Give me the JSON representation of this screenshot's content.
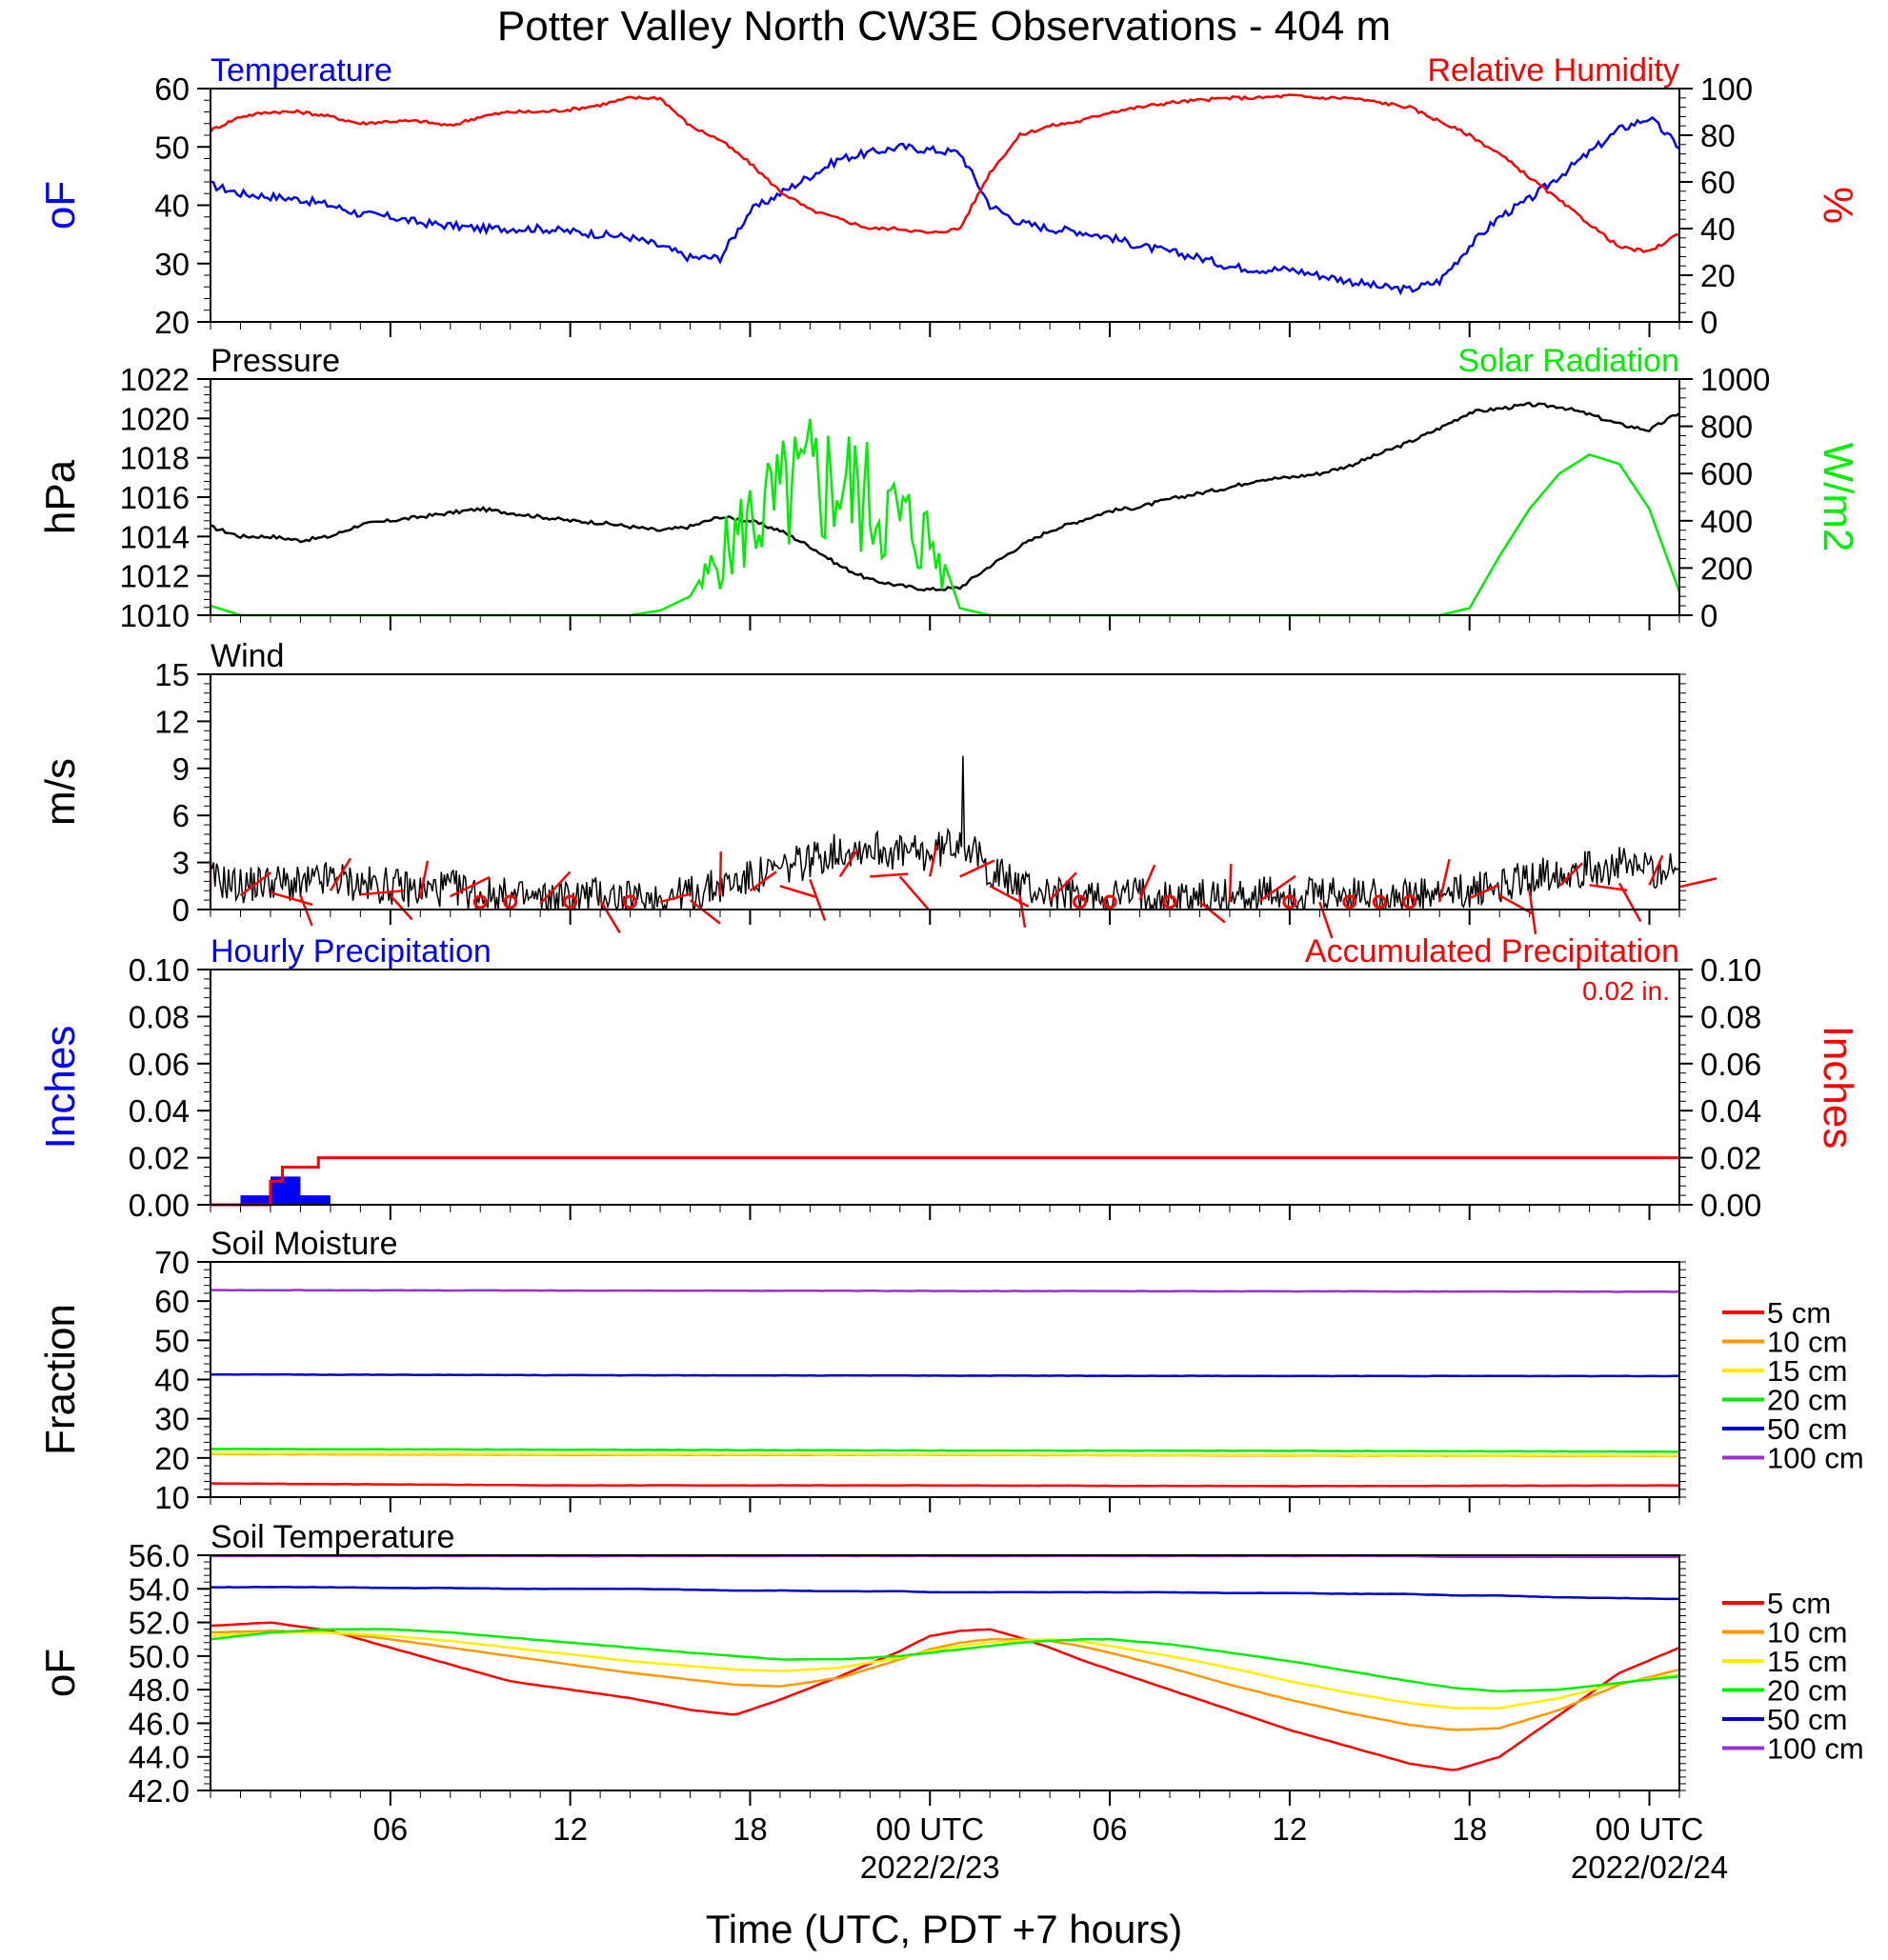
{
  "title": "Potter Valley North CW3E Observations - 404 m",
  "x_axis": {
    "label": "Time (UTC, PDT +7 hours)",
    "ticks": [
      {
        "hour": 6,
        "label": "06"
      },
      {
        "hour": 12,
        "label": "12"
      },
      {
        "hour": 18,
        "label": "18"
      },
      {
        "hour": 24,
        "label": "00 UTC",
        "date": "2022/2/23"
      },
      {
        "hour": 30,
        "label": "06"
      },
      {
        "hour": 36,
        "label": "12"
      },
      {
        "hour": 42,
        "label": "18"
      },
      {
        "hour": 48,
        "label": "00 UTC",
        "date": "2022/02/24"
      }
    ],
    "range_hours": [
      0,
      49
    ]
  },
  "chart_data": [
    {
      "type": "line",
      "id": "temp_rh",
      "left_title": "Temperature",
      "right_title": "Relative Humidity",
      "ylabel": "oF",
      "y2label": "%",
      "ylim": [
        20,
        60
      ],
      "y2lim": [
        0,
        100
      ],
      "yticks": [
        "20",
        "30",
        "40",
        "50",
        "60"
      ],
      "y2ticks": [
        "0",
        "20",
        "40",
        "60",
        "80",
        "100"
      ],
      "x_hours": [
        0,
        1,
        2,
        3,
        4,
        5,
        6,
        7,
        8,
        9,
        10,
        11,
        12,
        13,
        14,
        15,
        16,
        17,
        18,
        19,
        20,
        21,
        22,
        23,
        24,
        25,
        26,
        27,
        28,
        29,
        30,
        31,
        32,
        33,
        34,
        35,
        36,
        37,
        38,
        39,
        40,
        41,
        42,
        43,
        44,
        45,
        46,
        47,
        48,
        49
      ],
      "series": [
        {
          "values": [
            43.5,
            42,
            41.5,
            41,
            40,
            38.5,
            38,
            37,
            36.5,
            36,
            36,
            36,
            35.5,
            35,
            34.5,
            33,
            31,
            31,
            39,
            42,
            45,
            48,
            49,
            50,
            49.5,
            49,
            40,
            37,
            36,
            35.5,
            34.5,
            33,
            32,
            31,
            29.5,
            29,
            29,
            28,
            27,
            26,
            25.5,
            27,
            33,
            38,
            41,
            45,
            49,
            53,
            55,
            50
          ],
          "color": "#0000ff",
          "axis": "left"
        },
        {
          "values": [
            82,
            88,
            90,
            90,
            88,
            85,
            86,
            86,
            84,
            88,
            90,
            90,
            91,
            93,
            96,
            96,
            84,
            78,
            68,
            56,
            48,
            44,
            40,
            40,
            38,
            40,
            64,
            80,
            84,
            86,
            90,
            92,
            94,
            95,
            96,
            96,
            97,
            96,
            96,
            94,
            92,
            86,
            80,
            72,
            62,
            52,
            42,
            32,
            30,
            38
          ],
          "color": "#ff0000",
          "axis": "right"
        }
      ]
    },
    {
      "type": "line",
      "id": "pressure_solar",
      "left_title": "Pressure",
      "right_title": "Solar Radiation",
      "ylabel": "hPa",
      "y2label": "W/m2",
      "ylim": [
        1010,
        1022
      ],
      "y2lim": [
        0,
        1000
      ],
      "yticks": [
        "1010",
        "1012",
        "1014",
        "1016",
        "1018",
        "1020",
        "1022"
      ],
      "y2ticks": [
        "0",
        "200",
        "400",
        "600",
        "800",
        "1000"
      ],
      "x_hours": [
        0,
        1,
        2,
        3,
        4,
        5,
        6,
        7,
        8,
        9,
        10,
        11,
        12,
        13,
        14,
        15,
        16,
        17,
        18,
        19,
        20,
        21,
        22,
        23,
        24,
        25,
        26,
        27,
        28,
        29,
        30,
        31,
        32,
        33,
        34,
        35,
        36,
        37,
        38,
        39,
        40,
        41,
        42,
        43,
        44,
        45,
        46,
        47,
        48,
        49
      ],
      "series": [
        {
          "values": [
            1014.5,
            1014,
            1014,
            1013.8,
            1014,
            1014.6,
            1014.8,
            1015,
            1015.2,
            1015.4,
            1015.2,
            1015,
            1014.8,
            1014.7,
            1014.5,
            1014.3,
            1014.5,
            1015,
            1014.8,
            1014.3,
            1013.5,
            1012.5,
            1011.8,
            1011.5,
            1011.3,
            1011.4,
            1012.5,
            1013.5,
            1014.3,
            1014.8,
            1015.3,
            1015.5,
            1015.9,
            1016.2,
            1016.5,
            1016.9,
            1017,
            1017.2,
            1017.6,
            1018.2,
            1018.8,
            1019.5,
            1020.3,
            1020.5,
            1020.7,
            1020.6,
            1020.2,
            1019.7,
            1019.4,
            1020.3
          ],
          "color": "#000000",
          "axis": "left"
        },
        {
          "values": [
            40,
            0,
            0,
            0,
            0,
            0,
            0,
            0,
            0,
            0,
            0,
            0,
            0,
            0,
            0,
            20,
            80,
            300,
            500,
            600,
            700,
            700,
            600,
            500,
            400,
            30,
            0,
            0,
            0,
            0,
            0,
            0,
            0,
            0,
            0,
            0,
            0,
            0,
            0,
            0,
            0,
            0,
            30,
            250,
            450,
            600,
            680,
            640,
            450,
            100
          ],
          "color": "#00ee00",
          "axis": "right"
        }
      ]
    },
    {
      "type": "line",
      "id": "wind",
      "left_title": "Wind",
      "ylabel": "m/s",
      "ylim": [
        0,
        15
      ],
      "yticks": [
        "0",
        "3",
        "6",
        "9",
        "12",
        "15"
      ],
      "x_hours": [
        0,
        1,
        2,
        3,
        4,
        5,
        6,
        7,
        8,
        9,
        10,
        11,
        12,
        13,
        14,
        15,
        16,
        17,
        18,
        19,
        20,
        21,
        22,
        23,
        24,
        25,
        26,
        27,
        28,
        29,
        30,
        31,
        32,
        33,
        34,
        35,
        36,
        37,
        38,
        39,
        40,
        41,
        42,
        43,
        44,
        45,
        46,
        47,
        48,
        49
      ],
      "series": [
        {
          "values": [
            2,
            1.5,
            1.8,
            1.5,
            2,
            1.6,
            1.5,
            1.2,
            1.4,
            1,
            0.8,
            0.6,
            0.8,
            1,
            0.6,
            0.8,
            1,
            1.5,
            2,
            2.5,
            3.2,
            3.8,
            4,
            3.6,
            3.5,
            4.5,
            2.5,
            1.5,
            1,
            0.8,
            0.8,
            1,
            0.8,
            0.8,
            0.8,
            0.9,
            1,
            0.8,
            0.9,
            1,
            0.8,
            0.8,
            1.2,
            1.5,
            2,
            2.5,
            2.6,
            2.8,
            2.6,
            2.4
          ],
          "color": "#000000",
          "axis": "left"
        }
      ],
      "barbs_hours": [
        0,
        1,
        2,
        3,
        4,
        5,
        6,
        7,
        8,
        9,
        10,
        11,
        12,
        13,
        14,
        15,
        16,
        17,
        18,
        19,
        20,
        21,
        22,
        23,
        24,
        25,
        26,
        27,
        28,
        29,
        30,
        31,
        32,
        33,
        34,
        35,
        36,
        37,
        38,
        39,
        40,
        41,
        42,
        43,
        44,
        45,
        46,
        47,
        48,
        49
      ],
      "calm_hours": [
        9,
        10,
        12,
        14,
        29,
        30,
        32,
        36,
        38,
        39,
        40
      ]
    },
    {
      "type": "bar",
      "id": "precip",
      "left_title": "Hourly Precipitation",
      "right_title": "Accumulated Precipitation",
      "total_label": "0.02 in.",
      "ylabel": "Inches",
      "y2label": "Inches",
      "ylim": [
        0,
        0.1
      ],
      "y2lim": [
        0,
        0.1
      ],
      "yticks": [
        "0.00",
        "0.02",
        "0.04",
        "0.06",
        "0.08",
        "0.10"
      ],
      "y2ticks": [
        "0.00",
        "0.02",
        "0.04",
        "0.06",
        "0.08",
        "0.10"
      ],
      "bars": [
        {
          "start": 1,
          "end": 2,
          "value": 0.004
        },
        {
          "start": 2,
          "end": 3,
          "value": 0.012
        },
        {
          "start": 3,
          "end": 4,
          "value": 0.004
        }
      ],
      "accumulated": {
        "x_hours": [
          0,
          1,
          2,
          2.4,
          3.5,
          3.6,
          49
        ],
        "values": [
          0,
          0,
          0.01,
          0.016,
          0.016,
          0.02,
          0.02
        ]
      }
    },
    {
      "type": "line",
      "id": "soil_moisture",
      "left_title": "Soil Moisture",
      "ylabel": "Fraction",
      "ylim": [
        10,
        70
      ],
      "yticks": [
        "10",
        "20",
        "30",
        "40",
        "50",
        "60",
        "70"
      ],
      "x_hours": [
        0,
        12,
        24,
        36,
        48,
        49
      ],
      "series": [
        {
          "name": "5 cm",
          "color": "#ff0000",
          "values": [
            13.5,
            13,
            13,
            12.8,
            13,
            13
          ]
        },
        {
          "name": "10 cm",
          "color": "#ff9900",
          "values": [
            21,
            20.8,
            20.8,
            20.6,
            20.5,
            20.5
          ]
        },
        {
          "name": "15 cm",
          "color": "#ffee00",
          "values": [
            21.2,
            21,
            20.9,
            20.7,
            20.6,
            20.6
          ]
        },
        {
          "name": "20 cm",
          "color": "#00ee00",
          "values": [
            22.3,
            22.1,
            21.9,
            21.8,
            21.6,
            21.6
          ]
        },
        {
          "name": "50 cm",
          "color": "#0000cc",
          "values": [
            41.3,
            41.1,
            41,
            40.9,
            40.9,
            40.9
          ]
        },
        {
          "name": "100 cm",
          "color": "#9933cc",
          "values": [
            62.8,
            62.7,
            62.6,
            62.5,
            62.4,
            62.4
          ]
        }
      ]
    },
    {
      "type": "line",
      "id": "soil_temperature",
      "left_title": "Soil Temperature",
      "ylabel": "oF",
      "ylim": [
        42,
        56
      ],
      "yticks": [
        "42.0",
        "44.0",
        "46.0",
        "48.0",
        "50.0",
        "52.0",
        "54.0",
        "56.0"
      ],
      "x_hours": [
        0,
        2,
        4,
        6,
        8,
        10,
        12,
        14,
        16,
        17.5,
        19,
        21,
        23,
        24,
        25,
        26,
        27,
        28,
        29,
        30,
        32,
        34,
        36,
        38,
        40,
        41.5,
        43,
        45,
        47,
        49
      ],
      "series": [
        {
          "name": "5 cm",
          "color": "#ff0000",
          "values": [
            51.8,
            52,
            51.5,
            50.5,
            49.5,
            48.5,
            48,
            47.5,
            46.8,
            46.5,
            47.4,
            48.8,
            50.3,
            51.2,
            51.5,
            51.6,
            51.1,
            50.5,
            49.8,
            49.2,
            48,
            46.8,
            45.6,
            44.6,
            43.6,
            43.2,
            44,
            46.5,
            49,
            50.5
          ]
        },
        {
          "name": "10 cm",
          "color": "#ff9900",
          "values": [
            51.4,
            51.5,
            51.4,
            51,
            50.5,
            50,
            49.5,
            49,
            48.6,
            48.3,
            48.2,
            48.7,
            49.8,
            50.4,
            50.8,
            51,
            51,
            50.9,
            50.6,
            50.2,
            49.3,
            48.3,
            47.4,
            46.6,
            45.9,
            45.6,
            45.7,
            46.8,
            48.3,
            49.2
          ]
        },
        {
          "name": "15 cm",
          "color": "#ffee00",
          "values": [
            51.2,
            51.4,
            51.4,
            51.2,
            50.9,
            50.5,
            50.1,
            49.7,
            49.4,
            49.2,
            49.1,
            49.3,
            49.9,
            50.3,
            50.6,
            50.8,
            50.9,
            51,
            50.9,
            50.6,
            50,
            49.3,
            48.5,
            47.8,
            47.2,
            46.9,
            46.9,
            47.5,
            48.4,
            48.9
          ]
        },
        {
          "name": "20 cm",
          "color": "#00ee00",
          "values": [
            51,
            51.4,
            51.6,
            51.6,
            51.4,
            51.1,
            50.8,
            50.5,
            50.2,
            50,
            49.8,
            49.8,
            50,
            50.2,
            50.4,
            50.6,
            50.8,
            50.9,
            51,
            51,
            50.7,
            50.2,
            49.7,
            49.1,
            48.5,
            48.1,
            47.9,
            48,
            48.4,
            48.8
          ]
        },
        {
          "name": "50 cm",
          "color": "#0000cc",
          "values": [
            54.1,
            54.1,
            54.1,
            54.05,
            54.05,
            54,
            54,
            54,
            53.95,
            53.9,
            53.9,
            53.85,
            53.85,
            53.8,
            53.8,
            53.8,
            53.8,
            53.8,
            53.8,
            53.8,
            53.8,
            53.75,
            53.75,
            53.7,
            53.7,
            53.6,
            53.6,
            53.5,
            53.45,
            53.4
          ]
        },
        {
          "name": "100 cm",
          "color": "#9933cc",
          "values": [
            55.95,
            55.95,
            55.95,
            55.95,
            55.95,
            55.95,
            55.95,
            55.95,
            55.95,
            55.95,
            55.95,
            55.95,
            55.95,
            55.95,
            55.95,
            55.95,
            55.95,
            55.95,
            55.95,
            55.95,
            55.95,
            55.95,
            55.95,
            55.95,
            55.95,
            55.9,
            55.9,
            55.9,
            55.9,
            55.9
          ]
        }
      ]
    }
  ]
}
